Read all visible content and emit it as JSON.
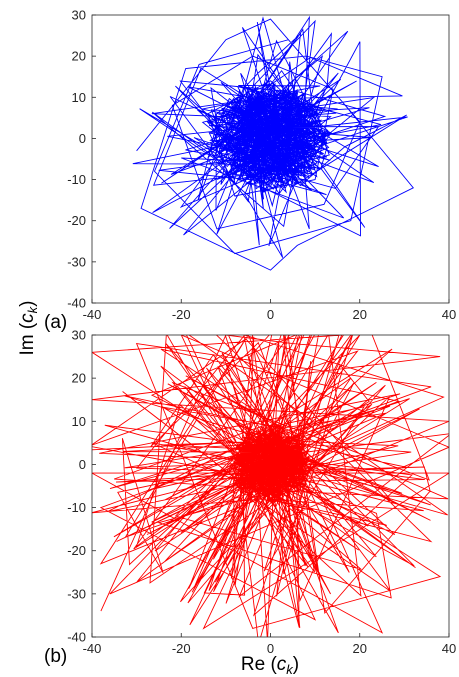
{
  "figure": {
    "ylabel_prefix": "Im (",
    "ylabel_var": "c",
    "ylabel_sub": "k",
    "ylabel_suffix": ")",
    "xlabel_prefix": "Re (",
    "xlabel_var": "c",
    "xlabel_sub": "k",
    "xlabel_suffix": ")"
  },
  "chart_data": [
    {
      "type": "line",
      "panel_label": "(a)",
      "color": "#0000ff",
      "xlim": [
        -40,
        40
      ],
      "ylim": [
        -40,
        30
      ],
      "xticks": [
        -40,
        -20,
        0,
        20,
        40
      ],
      "yticks": [
        30,
        20,
        10,
        0,
        -10,
        -20,
        -30,
        -40
      ],
      "xticklabels": [
        "-40",
        "-20",
        "0",
        "20",
        "40"
      ],
      "yticklabels": [
        "30",
        "20",
        "10",
        "0",
        "-10",
        "-20",
        "-30",
        "-40"
      ],
      "trajectory": {
        "description_points": [
          [
            -30,
            -3
          ],
          [
            -10,
            24
          ],
          [
            0,
            29
          ],
          [
            16,
            9
          ],
          [
            32,
            -12
          ],
          [
            6,
            -26
          ],
          [
            0,
            -32
          ],
          [
            -29,
            -17
          ],
          [
            -19,
            17
          ],
          [
            8,
            20
          ],
          [
            25,
            15
          ],
          [
            18,
            -20
          ],
          [
            -8,
            -28
          ],
          [
            -26,
            -8
          ],
          [
            -16,
            18
          ],
          [
            4,
            24
          ],
          [
            20,
            4
          ],
          [
            12,
            -16
          ],
          [
            -12,
            -22
          ],
          [
            -22,
            8
          ],
          [
            -4,
            20
          ],
          [
            14,
            12
          ],
          [
            10,
            -10
          ],
          [
            -8,
            -14
          ],
          [
            -14,
            6
          ],
          [
            0,
            14
          ],
          [
            10,
            4
          ]
        ],
        "core_radius": 12,
        "outer_radius": 32
      }
    },
    {
      "type": "line",
      "panel_label": "(b)",
      "color": "#ff0000",
      "xlim": [
        -40,
        40
      ],
      "ylim": [
        -40,
        30
      ],
      "xticks": [
        -40,
        -20,
        0,
        20,
        40
      ],
      "yticks": [
        30,
        20,
        10,
        0,
        -10,
        -20,
        -30,
        -40
      ],
      "xticklabels": [
        "-40",
        "-20",
        "0",
        "20",
        "40"
      ],
      "yticklabels": [
        "30",
        "20",
        "10",
        "0",
        "-10",
        "-20",
        "-30",
        "-40"
      ],
      "trajectory": {
        "description_points": [
          [
            -38,
            -34
          ],
          [
            -10,
            30
          ],
          [
            5,
            28
          ],
          [
            38,
            25
          ],
          [
            -40,
            15
          ],
          [
            40,
            10
          ],
          [
            -38,
            -23
          ],
          [
            -5,
            30
          ],
          [
            25,
            -39
          ],
          [
            -40,
            -2
          ],
          [
            40,
            -2
          ],
          [
            -15,
            -38
          ],
          [
            16,
            30
          ],
          [
            -40,
            26
          ],
          [
            38,
            -26
          ],
          [
            -4,
            -38
          ],
          [
            -30,
            28
          ],
          [
            36,
            18
          ],
          [
            -38,
            -10
          ],
          [
            10,
            -36
          ],
          [
            -20,
            30
          ],
          [
            40,
            4
          ],
          [
            -36,
            -30
          ],
          [
            20,
            30
          ]
        ],
        "core_radius": 8,
        "outer_radius": 40
      }
    }
  ]
}
